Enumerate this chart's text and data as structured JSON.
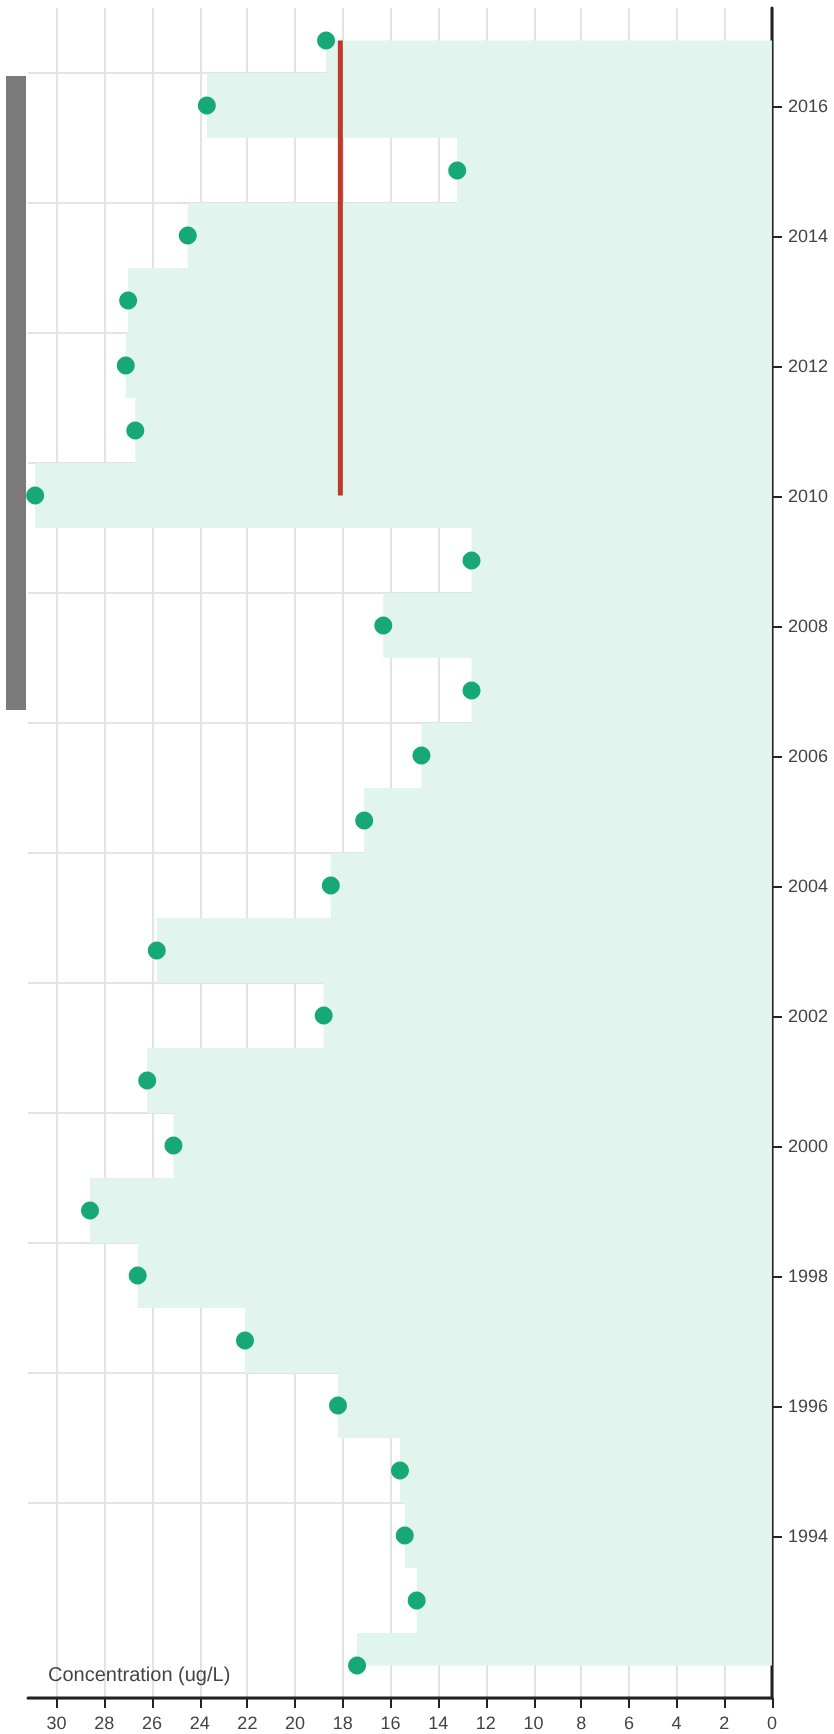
{
  "chart_data": {
    "type": "area",
    "orientation": "horizontal",
    "xlabel": "Concentration (ug/L)",
    "categories": [
      null,
      "2016",
      null,
      "2014",
      null,
      "2012",
      null,
      "2010",
      null,
      "2008",
      null,
      "2006",
      null,
      "2004",
      null,
      "2002",
      null,
      "2000",
      null,
      "1998",
      null,
      "1996",
      null,
      "1994",
      null,
      null
    ],
    "xlim": [
      31.2,
      0
    ],
    "xticks": [
      0,
      2,
      4,
      6,
      8,
      10,
      12,
      14,
      16,
      18,
      20,
      22,
      24,
      26,
      28,
      30
    ],
    "grid": true,
    "marker": "circle",
    "series": [
      {
        "color": "#16a975",
        "values": [
          18.7,
          23.7,
          13.2,
          24.5,
          27.0,
          27.1,
          26.7,
          30.9,
          12.6,
          16.3,
          12.6,
          14.7,
          17.1,
          18.5,
          25.8,
          18.8,
          26.2,
          25.1,
          28.6,
          26.6,
          22.1,
          18.2,
          15.6,
          15.4,
          14.9,
          17.4
        ]
      },
      {
        "type": "line",
        "color": "#c0392b",
        "marker": "none",
        "values": [
          18.1,
          18.1,
          18.1,
          18.1,
          18.1,
          18.1,
          18.1,
          18.1,
          null,
          null,
          null,
          null,
          null,
          null,
          null,
          null,
          null,
          null,
          null,
          null,
          null,
          null,
          null,
          null,
          null,
          null
        ]
      }
    ]
  }
}
